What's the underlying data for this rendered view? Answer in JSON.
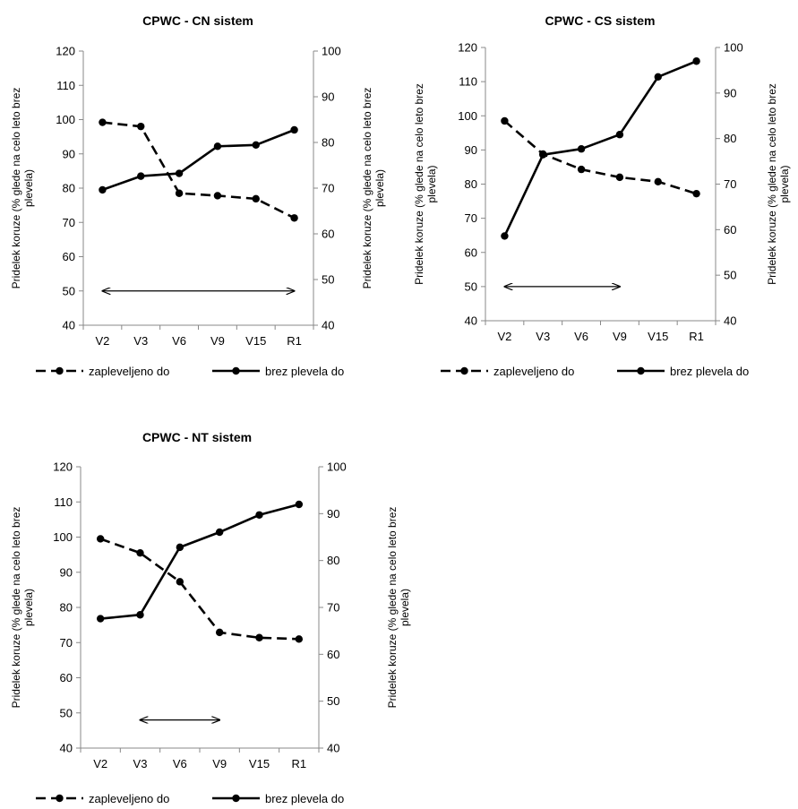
{
  "chart_data": [
    {
      "type": "line",
      "title": "CPWC - CN sistem",
      "categories": [
        "V2",
        "V3",
        "V6",
        "V9",
        "V15",
        "R1"
      ],
      "ylabel_left": [
        "Pridelek koruze (% glede na celo leto brez",
        "plevela)"
      ],
      "ylabel_right": [
        "Pridelek koruze (% glede na celo leto brez",
        "plevela)"
      ],
      "ylim_left": [
        40,
        120
      ],
      "yticks_left": [
        "40",
        "50",
        "60",
        "70",
        "80",
        "90",
        "100",
        "110",
        "120"
      ],
      "ylim_right": [
        40,
        100
      ],
      "yticks_right": [
        "40",
        "50",
        "60",
        "70",
        "80",
        "90",
        "100"
      ],
      "series": [
        {
          "name": "zapleveljeno do",
          "style": "dashed",
          "values": [
            99.2,
            98.0,
            78.5,
            77.8,
            76.9,
            71.3
          ]
        },
        {
          "name": "brez plevela do",
          "style": "solid",
          "values": [
            79.5,
            83.5,
            84.3,
            92.2,
            92.6,
            97.0
          ]
        }
      ],
      "arrow": {
        "from": "V2",
        "to": "R1",
        "y": 50
      },
      "legend": "bottom",
      "grid": false
    },
    {
      "type": "line",
      "title": "CPWC - CS sistem",
      "categories": [
        "V2",
        "V3",
        "V6",
        "V9",
        "V15",
        "R1"
      ],
      "ylabel_left": [
        "Pridelek koruze (% glede na celo leto brez",
        "plevela)"
      ],
      "ylabel_right": [
        "Pridelek koruze (% glede na celo leto brez",
        "plevela)"
      ],
      "ylim_left": [
        40,
        120
      ],
      "yticks_left": [
        "40",
        "50",
        "60",
        "70",
        "80",
        "90",
        "100",
        "110",
        "120"
      ],
      "ylim_right": [
        40,
        100
      ],
      "yticks_right": [
        "40",
        "50",
        "60",
        "70",
        "80",
        "90",
        "100"
      ],
      "series": [
        {
          "name": "zapleveljeno do",
          "style": "dashed",
          "values": [
            98.5,
            88.8,
            84.3,
            82.0,
            80.7,
            77.2
          ]
        },
        {
          "name": "brez plevela do",
          "style": "solid",
          "values": [
            64.8,
            88.6,
            90.3,
            94.5,
            111.4,
            116.0
          ]
        }
      ],
      "arrow": {
        "from": "V2",
        "to": "V9",
        "y": 50
      },
      "legend": "bottom",
      "grid": false
    },
    {
      "type": "line",
      "title": "CPWC - NT sistem",
      "categories": [
        "V2",
        "V3",
        "V6",
        "V9",
        "V15",
        "R1"
      ],
      "ylabel_left": [
        "Pridelek koruze (% glede na celo leto brez",
        "plevela)"
      ],
      "ylabel_right": [
        "Pridelek koruze (% glede na celo leto brez",
        "plevela)"
      ],
      "ylim_left": [
        40,
        120
      ],
      "yticks_left": [
        "40",
        "50",
        "60",
        "70",
        "80",
        "90",
        "100",
        "110",
        "120"
      ],
      "ylim_right": [
        40,
        100
      ],
      "yticks_right": [
        "40",
        "50",
        "60",
        "70",
        "80",
        "90",
        "100"
      ],
      "series": [
        {
          "name": "zapleveljeno do",
          "style": "dashed",
          "values": [
            99.5,
            95.5,
            87.3,
            72.9,
            71.4,
            71.0
          ]
        },
        {
          "name": "brez plevela do",
          "style": "solid",
          "values": [
            76.8,
            77.9,
            97.1,
            101.4,
            106.3,
            109.3
          ]
        }
      ],
      "arrow": {
        "from": "V3",
        "to": "V9",
        "y": 48
      },
      "legend": "bottom",
      "grid": false
    }
  ]
}
